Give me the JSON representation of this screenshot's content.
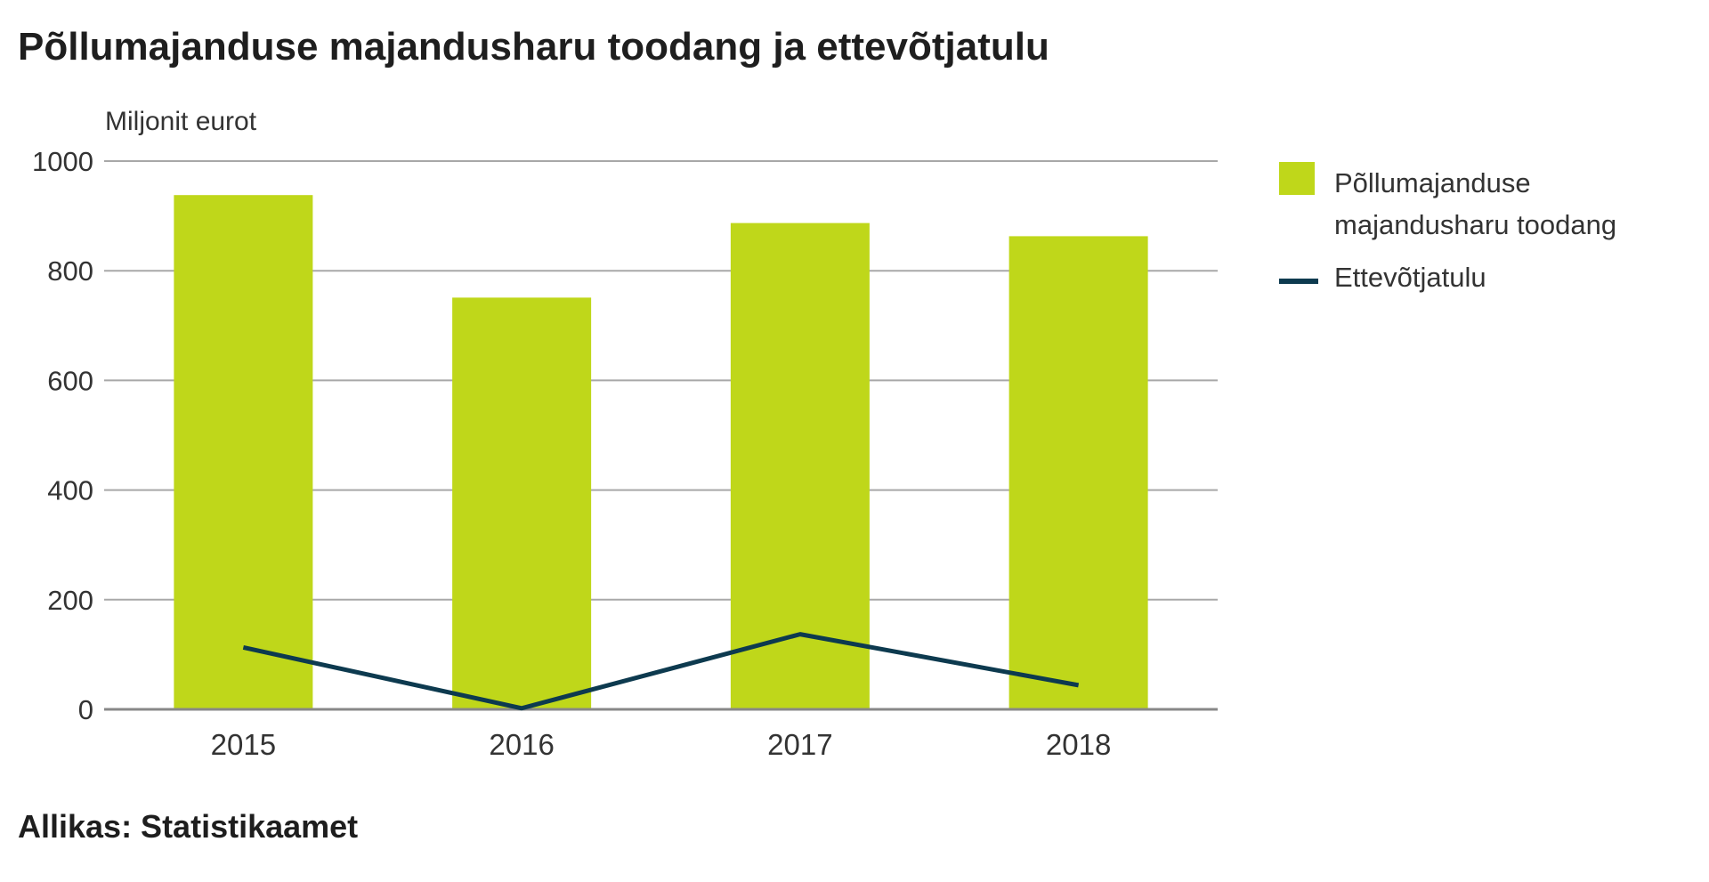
{
  "chart_data": {
    "type": "bar",
    "title": "Põllumajanduse majandusharu toodang ja ettevõtjatulu",
    "ylabel": "Miljonit eurot",
    "xlabel": "",
    "categories": [
      "2015",
      "2016",
      "2017",
      "2018"
    ],
    "ylim": [
      0,
      1000
    ],
    "yticks": [
      "0",
      "200",
      "400",
      "600",
      "800",
      "1000"
    ],
    "grid": true,
    "legend_position": "right",
    "series": [
      {
        "name": "Põllumajanduse majandusharu toodang",
        "type": "bar",
        "color": "#bfd71a",
        "values": [
          938,
          751,
          887,
          863
        ]
      },
      {
        "name": "Ettevõtjatulu",
        "type": "line",
        "color": "#0d3a4f",
        "values": [
          113,
          2,
          137,
          44
        ]
      }
    ],
    "source": "Allikas: Statistikaamet"
  }
}
